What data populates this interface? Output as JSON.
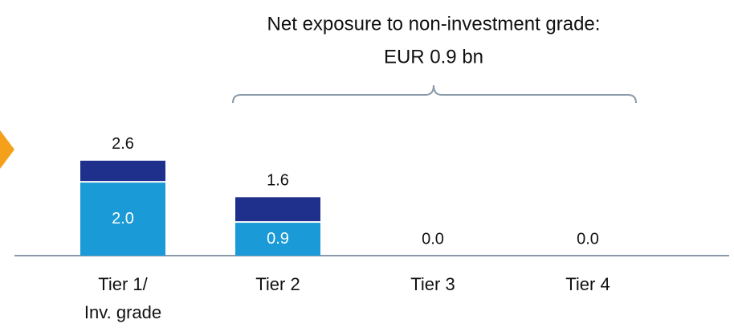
{
  "chart_data": {
    "type": "stacked_bar",
    "annotation": [
      "Net exposure to non-investment grade:",
      "EUR 0.9 bn"
    ],
    "categories": [
      "Tier 1/\nInv. grade",
      "Tier 2",
      "Tier 3",
      "Tier 4"
    ],
    "series": [
      {
        "color": "#1a9ad6",
        "values": [
          2.0,
          0.9,
          0,
          0
        ],
        "value_labels": [
          "2.0",
          "0.9",
          null,
          null
        ]
      },
      {
        "color": "#1f2f8c",
        "values": [
          0.6,
          0.7,
          0,
          0
        ]
      }
    ],
    "total_labels": [
      "2.6",
      "1.6",
      "0.0",
      "0.0"
    ],
    "ylim": [
      0,
      7
    ]
  }
}
